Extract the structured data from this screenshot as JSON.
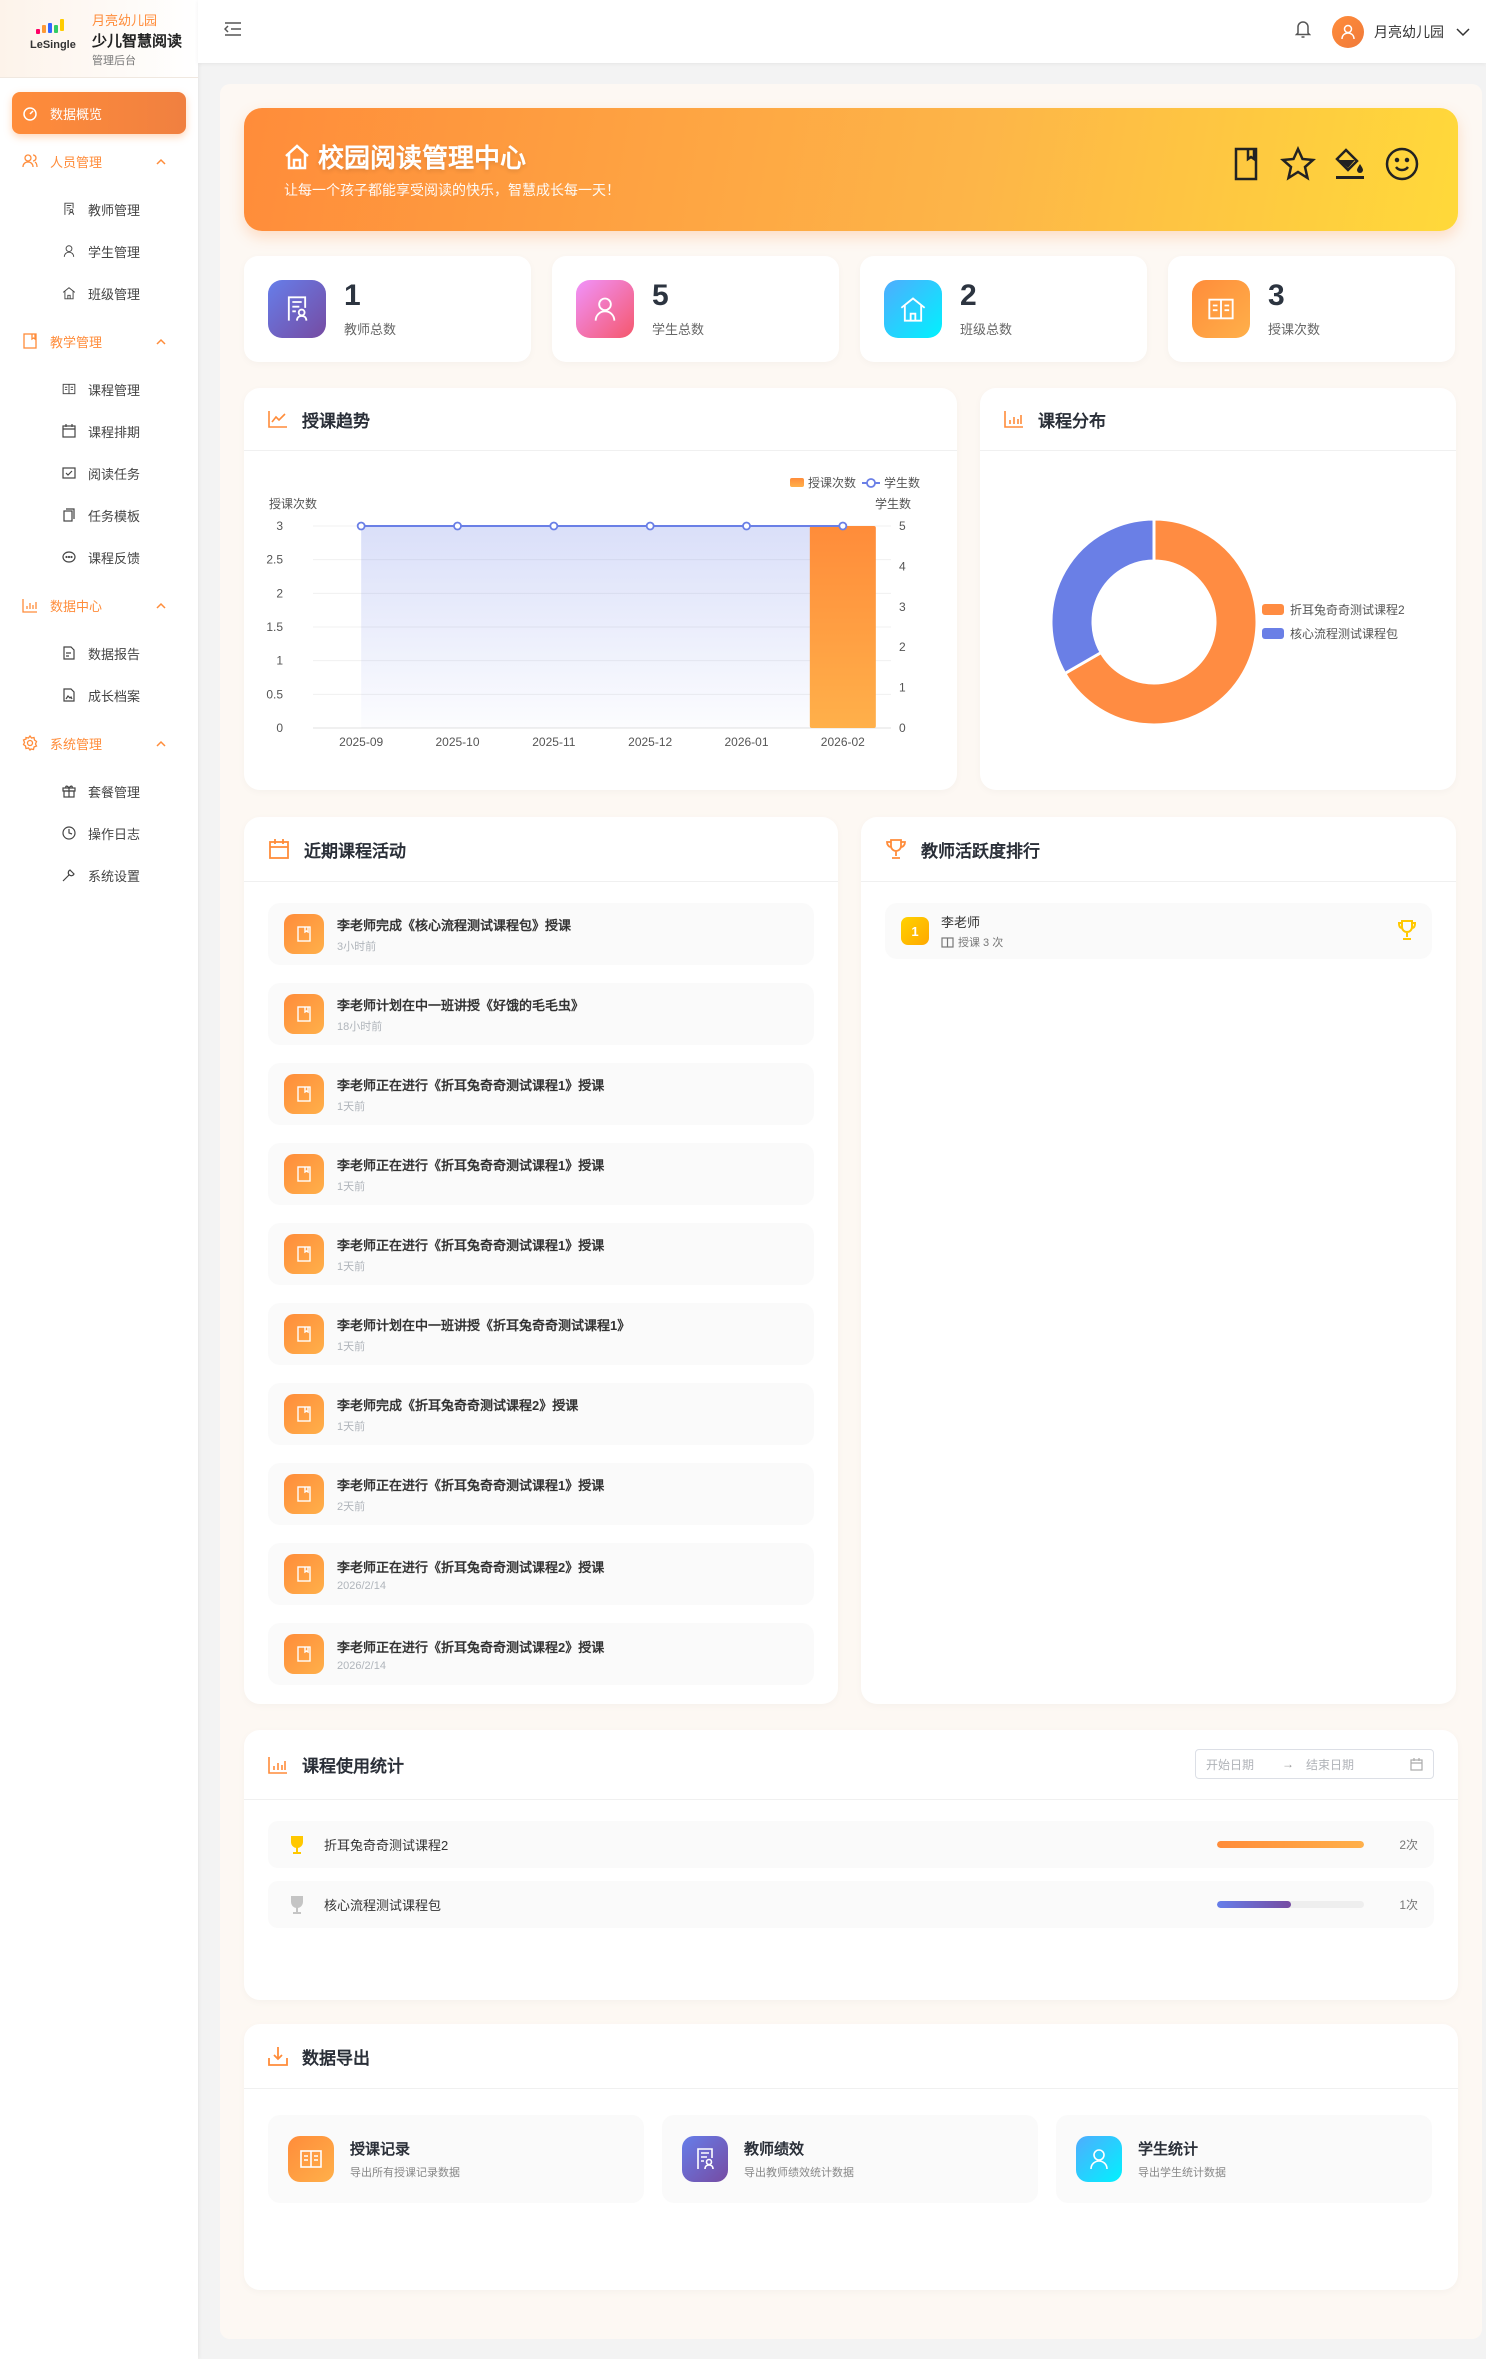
{
  "brand": {
    "logo_text": "LeSingle",
    "school": "月亮幼儿园",
    "app": "少儿智慧阅读",
    "sub": "管理后台"
  },
  "sidebar": {
    "active": {
      "label": "数据概览",
      "icon": "dashboard-icon"
    },
    "groups": [
      {
        "label": "人员管理",
        "icon": "people-icon",
        "items": [
          {
            "label": "教师管理",
            "icon": "teacher-icon"
          },
          {
            "label": "学生管理",
            "icon": "user-icon"
          },
          {
            "label": "班级管理",
            "icon": "home-icon"
          }
        ]
      },
      {
        "label": "教学管理",
        "icon": "book-icon",
        "items": [
          {
            "label": "课程管理",
            "icon": "open-book-icon"
          },
          {
            "label": "课程排期",
            "icon": "calendar-icon"
          },
          {
            "label": "阅读任务",
            "icon": "check-square-icon"
          },
          {
            "label": "任务模板",
            "icon": "copy-icon"
          },
          {
            "label": "课程反馈",
            "icon": "chat-icon"
          }
        ]
      },
      {
        "label": "数据中心",
        "icon": "bar-chart-icon",
        "items": [
          {
            "label": "数据报告",
            "icon": "report-icon"
          },
          {
            "label": "成长档案",
            "icon": "archive-icon"
          }
        ]
      },
      {
        "label": "系统管理",
        "icon": "gear-icon",
        "items": [
          {
            "label": "套餐管理",
            "icon": "gift-icon"
          },
          {
            "label": "操作日志",
            "icon": "clock-icon"
          },
          {
            "label": "系统设置",
            "icon": "wrench-icon"
          }
        ]
      }
    ]
  },
  "header": {
    "user": "月亮幼儿园"
  },
  "banner": {
    "title": "校园阅读管理中心",
    "subtitle": "让每一个孩子都能享受阅读的快乐，智慧成长每一天！"
  },
  "stats": [
    {
      "value": "1",
      "label": "教师总数",
      "icon": "teacher-icon",
      "colors": [
        "#667eea",
        "#764ba2"
      ]
    },
    {
      "value": "5",
      "label": "学生总数",
      "icon": "user-icon",
      "colors": [
        "#f093fb",
        "#f5576c"
      ]
    },
    {
      "value": "2",
      "label": "班级总数",
      "icon": "home-icon",
      "colors": [
        "#4facfe",
        "#00f2fe"
      ]
    },
    {
      "value": "3",
      "label": "授课次数",
      "icon": "open-book-icon",
      "colors": [
        "#ff8c3a",
        "#ffb04a"
      ]
    }
  ],
  "trend": {
    "title": "授课趋势"
  },
  "distribution": {
    "title": "课程分布"
  },
  "chart_data": [
    {
      "type": "bar+line",
      "categories": [
        "2025-09",
        "2025-10",
        "2025-11",
        "2025-12",
        "2026-01",
        "2026-02"
      ],
      "series": [
        {
          "name": "授课次数",
          "type": "bar",
          "axis": "left",
          "values": [
            0,
            0,
            0,
            0,
            0,
            3
          ],
          "color": "#ff8c3a"
        },
        {
          "name": "学生数",
          "type": "line",
          "axis": "right",
          "values": [
            5,
            5,
            5,
            5,
            5,
            5
          ],
          "color": "#6a7fe6"
        }
      ],
      "ylabel": "授课次数",
      "y2label": "学生数",
      "ylim": [
        0,
        3
      ],
      "y2lim": [
        0,
        5
      ],
      "yticks": [
        "0",
        "0.5",
        "1",
        "1.5",
        "2",
        "2.5",
        "3"
      ],
      "y2ticks": [
        "0",
        "1",
        "2",
        "3",
        "4",
        "5"
      ],
      "grid": true,
      "legend": "top-right"
    },
    {
      "type": "pie",
      "donut": true,
      "slices": [
        {
          "name": "折耳兔奇奇测试课程2",
          "value": 2,
          "color": "#ff8c42"
        },
        {
          "name": "核心流程测试课程包",
          "value": 1,
          "color": "#6a7fe6"
        }
      ],
      "legend": "right"
    }
  ],
  "activity": {
    "title": "近期课程活动",
    "items": [
      {
        "text": "李老师完成《核心流程测试课程包》授课",
        "time": "3小时前"
      },
      {
        "text": "李老师计划在中一班讲授《好饿的毛毛虫》",
        "time": "18小时前"
      },
      {
        "text": "李老师正在进行《折耳兔奇奇测试课程1》授课",
        "time": "1天前"
      },
      {
        "text": "李老师正在进行《折耳兔奇奇测试课程1》授课",
        "time": "1天前"
      },
      {
        "text": "李老师正在进行《折耳兔奇奇测试课程1》授课",
        "time": "1天前"
      },
      {
        "text": "李老师计划在中一班讲授《折耳兔奇奇测试课程1》",
        "time": "1天前"
      },
      {
        "text": "李老师完成《折耳兔奇奇测试课程2》授课",
        "time": "1天前"
      },
      {
        "text": "李老师正在进行《折耳兔奇奇测试课程1》授课",
        "time": "2天前"
      },
      {
        "text": "李老师正在进行《折耳兔奇奇测试课程2》授课",
        "time": "2026/2/14"
      },
      {
        "text": "李老师正在进行《折耳兔奇奇测试课程2》授课",
        "time": "2026/2/14"
      }
    ]
  },
  "ranking": {
    "title": "教师活跃度排行",
    "items": [
      {
        "rank": "1",
        "name": "李老师",
        "detail": "授课 3 次"
      }
    ]
  },
  "usage": {
    "title": "课程使用统计",
    "start_placeholder": "开始日期",
    "end_placeholder": "结束日期",
    "arrow": "→",
    "items": [
      {
        "name": "折耳兔奇奇测试课程2",
        "count": "2次",
        "percent": 100,
        "colors": [
          "#ff8c3a",
          "#ffb04a"
        ],
        "trophy": "#ffc800"
      },
      {
        "name": "核心流程测试课程包",
        "count": "1次",
        "percent": 50,
        "colors": [
          "#667eea",
          "#764ba2"
        ],
        "trophy": "#c4c4c4"
      }
    ]
  },
  "export": {
    "title": "数据导出",
    "items": [
      {
        "title": "授课记录",
        "desc": "导出所有授课记录数据",
        "icon": "open-book-icon",
        "colors": [
          "#ff8c3a",
          "#ffb04a"
        ]
      },
      {
        "title": "教师绩效",
        "desc": "导出教师绩效统计数据",
        "icon": "teacher-icon",
        "colors": [
          "#667eea",
          "#764ba2"
        ]
      },
      {
        "title": "学生统计",
        "desc": "导出学生统计数据",
        "icon": "user-icon",
        "colors": [
          "#4facfe",
          "#00f2fe"
        ]
      }
    ]
  }
}
